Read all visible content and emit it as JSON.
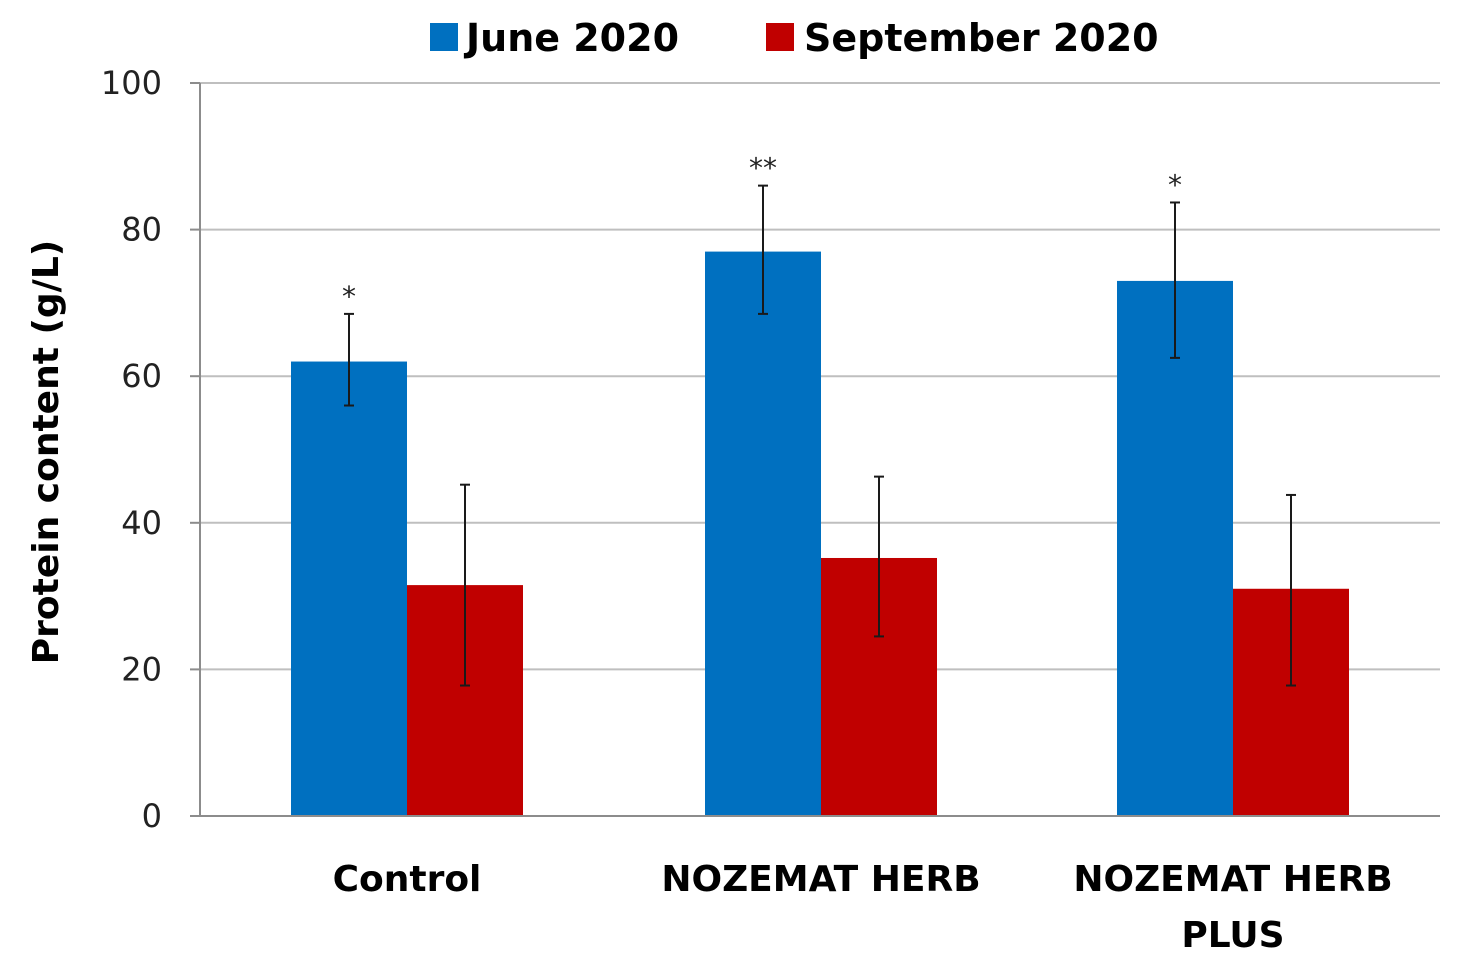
{
  "chart_data": {
    "type": "bar",
    "title": "",
    "xlabel": "",
    "ylabel": "Protein content  (g/L)",
    "ylim": [
      0,
      100
    ],
    "yticks": [
      0,
      20,
      40,
      60,
      80,
      100
    ],
    "ytick_labels": [
      "0",
      "20",
      "40",
      "60",
      "80",
      "100"
    ],
    "grid": true,
    "legend_position": "top-center",
    "categories": [
      {
        "lines": [
          "Control"
        ]
      },
      {
        "lines": [
          "NOZEMAT HERB"
        ]
      },
      {
        "lines": [
          "NOZEMAT HERB",
          "PLUS"
        ]
      }
    ],
    "series": [
      {
        "name": "June 2020",
        "color": "#0070C0",
        "values": [
          62,
          77,
          73
        ],
        "error_low": [
          56,
          68.5,
          62.5
        ],
        "error_high": [
          68.5,
          86,
          83.7
        ],
        "significance": [
          "*",
          "**",
          "*"
        ]
      },
      {
        "name": "September 2020",
        "color": "#C00000",
        "values": [
          31.5,
          35.2,
          31
        ],
        "error_low": [
          17.8,
          24.5,
          17.8
        ],
        "error_high": [
          45.2,
          46.3,
          43.8
        ],
        "significance": [
          "",
          "",
          ""
        ]
      }
    ]
  }
}
